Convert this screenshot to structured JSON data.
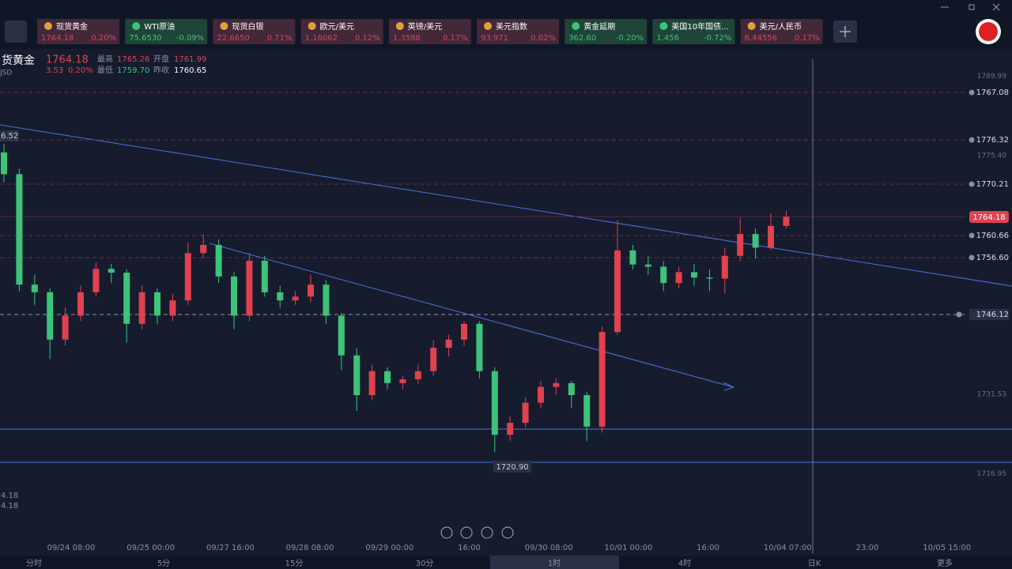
{
  "tickers": [
    {
      "name": "现货黄金",
      "price": "1764.18",
      "change": "0.20%"
    },
    {
      "name": "WTI原油",
      "price": "75.6530",
      "change": "-0.09%"
    },
    {
      "name": "现货白银",
      "price": "22.6650",
      "change": "0.71%"
    },
    {
      "name": "欧元/美元",
      "price": "1.16062",
      "change": "0.12%"
    },
    {
      "name": "英镑/美元",
      "price": "1.3588",
      "change": "0.17%"
    },
    {
      "name": "美元指数",
      "price": "93.971",
      "change": "0.02%"
    },
    {
      "name": "黄金延期",
      "price": "362.60",
      "change": "-0.20%"
    },
    {
      "name": "美国10年国债...",
      "price": "1.456",
      "change": "-0.72%"
    },
    {
      "name": "美元/人民币",
      "price": "6.44556",
      "change": "0.17%"
    }
  ],
  "quote": {
    "name": "货黄金",
    "price": "1764.18",
    "change": "3.53",
    "pct": "0.20%",
    "currency": "JSD",
    "high_label": "最高",
    "high": "1765.26",
    "open_label": "开盘",
    "open": "1761.99",
    "low_label": "最低",
    "low": "1759.70",
    "prev_label": "昨收",
    "prev": "1760.65"
  },
  "alerts": [
    "1767.08",
    "1776.32",
    "1770.21",
    "1760.66",
    "1756.60",
    "1746.12"
  ],
  "current": "1764.18",
  "low_mark": "1720.90",
  "edge_labels": [
    "6.52",
    "4.18",
    "4.18"
  ],
  "tabs": [
    "分时",
    "5分",
    "15分",
    "30分",
    "1时",
    "4时",
    "日K",
    "更多"
  ],
  "chart_data": {
    "type": "candlestick",
    "ylim": [
      1705.25,
      1793.12
    ],
    "yticks": [
      1789.99,
      {
        "value": 1775.4,
        "label": "1775.40"
      },
      1731.53,
      1716.95
    ],
    "xlabels": [
      "09/24 08:00",
      "09/25 00:00",
      "09/27 16:00",
      "09/28 08:00",
      "09/29 00:00",
      "16:00",
      "09/30 08:00",
      "10/01 00:00",
      "16:00",
      "10/04 07:00",
      "23:00",
      "10/05 15:00"
    ],
    "up_color": "#e0424f",
    "down_color": "#3cc47a",
    "candles": [
      [
        1776.0,
        1777.5,
        1770.5,
        1772.0
      ],
      [
        1772.0,
        1773.0,
        1750.5,
        1751.7
      ],
      [
        1751.7,
        1753.5,
        1748.0,
        1750.3
      ],
      [
        1750.3,
        1751.0,
        1738.0,
        1741.6
      ],
      [
        1741.6,
        1747.5,
        1740.5,
        1746.0
      ],
      [
        1746.0,
        1751.5,
        1745.0,
        1750.3
      ],
      [
        1750.3,
        1755.8,
        1749.5,
        1754.6
      ],
      [
        1754.6,
        1755.5,
        1752.0,
        1753.9
      ],
      [
        1753.9,
        1754.5,
        1741.0,
        1744.5
      ],
      [
        1744.5,
        1751.5,
        1743.5,
        1750.3
      ],
      [
        1750.3,
        1751.0,
        1744.5,
        1746.0
      ],
      [
        1746.0,
        1750.0,
        1745.0,
        1748.8
      ],
      [
        1748.8,
        1759.5,
        1748.0,
        1757.5
      ],
      [
        1757.5,
        1761.0,
        1756.5,
        1759.0
      ],
      [
        1759.0,
        1760.0,
        1752.0,
        1753.2
      ],
      [
        1753.2,
        1754.0,
        1743.5,
        1746.0
      ],
      [
        1746.0,
        1757.5,
        1745.0,
        1756.1
      ],
      [
        1756.1,
        1757.0,
        1749.5,
        1750.3
      ],
      [
        1750.3,
        1751.5,
        1747.5,
        1748.8
      ],
      [
        1748.8,
        1750.5,
        1748.0,
        1749.5
      ],
      [
        1749.5,
        1753.5,
        1748.5,
        1751.7
      ],
      [
        1751.7,
        1752.5,
        1744.5,
        1746.0
      ],
      [
        1746.0,
        1746.5,
        1736.0,
        1738.7
      ],
      [
        1738.7,
        1740.0,
        1728.5,
        1731.4
      ],
      [
        1731.4,
        1737.0,
        1730.5,
        1735.8
      ],
      [
        1735.8,
        1736.5,
        1732.5,
        1733.6
      ],
      [
        1733.6,
        1735.0,
        1732.5,
        1734.3
      ],
      [
        1734.3,
        1737.0,
        1733.5,
        1735.8
      ],
      [
        1735.8,
        1741.5,
        1735.0,
        1740.1
      ],
      [
        1740.1,
        1742.5,
        1738.5,
        1741.6
      ],
      [
        1741.6,
        1745.0,
        1740.5,
        1744.5
      ],
      [
        1744.5,
        1745.0,
        1734.5,
        1735.8
      ],
      [
        1735.8,
        1736.5,
        1720.9,
        1724.1
      ],
      [
        1724.1,
        1727.5,
        1723.0,
        1726.3
      ],
      [
        1726.3,
        1731.0,
        1725.5,
        1730.0
      ],
      [
        1730.0,
        1734.0,
        1729.0,
        1732.9
      ],
      [
        1732.9,
        1734.5,
        1731.5,
        1733.6
      ],
      [
        1733.6,
        1734.0,
        1729.0,
        1731.4
      ],
      [
        1731.4,
        1732.0,
        1723.0,
        1725.6
      ],
      [
        1725.6,
        1744.0,
        1724.5,
        1743.0
      ],
      [
        1743.0,
        1763.5,
        1742.5,
        1758.0
      ],
      [
        1758.0,
        1759.0,
        1754.5,
        1755.4
      ],
      [
        1755.4,
        1757.0,
        1753.5,
        1755.0
      ],
      [
        1755.0,
        1756.0,
        1750.5,
        1752.0
      ],
      [
        1752.0,
        1755.0,
        1751.0,
        1754.0
      ],
      [
        1754.0,
        1755.5,
        1751.5,
        1753.0
      ],
      [
        1753.0,
        1754.5,
        1750.5,
        1752.8
      ],
      [
        1752.8,
        1758.5,
        1750.0,
        1757.0
      ],
      [
        1757.0,
        1764.0,
        1756.0,
        1761.0
      ],
      [
        1761.0,
        1762.0,
        1756.5,
        1758.5
      ],
      [
        1758.5,
        1764.8,
        1758.0,
        1762.5
      ],
      [
        1762.5,
        1765.26,
        1761.99,
        1764.18
      ]
    ]
  }
}
